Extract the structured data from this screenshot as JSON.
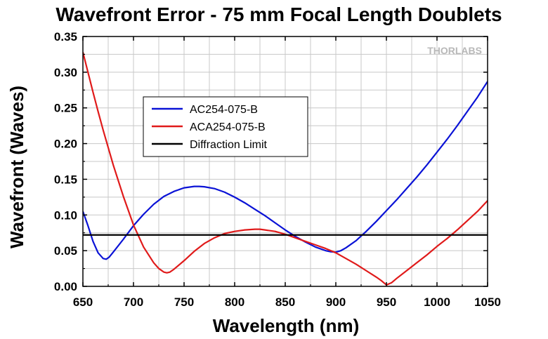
{
  "colors": {
    "blue": "#0a12d6",
    "red": "#e01a1a",
    "black": "#000000",
    "grid": "#c8c8c8"
  },
  "brand": "THORLABS",
  "chart_data": {
    "type": "line",
    "title": "Wavefront Error - 75 mm Focal Length Doublets",
    "xlabel": "Wavelength (nm)",
    "ylabel": "Wavefront (Waves)",
    "xlim": [
      650,
      1050
    ],
    "ylim": [
      0,
      0.35
    ],
    "xticks": [
      650,
      700,
      750,
      800,
      850,
      900,
      950,
      1000,
      1050
    ],
    "yticks": [
      0.0,
      0.05,
      0.1,
      0.15,
      0.2,
      0.25,
      0.3,
      0.35
    ],
    "ytick_labels": [
      "0.00",
      "0.05",
      "0.10",
      "0.15",
      "0.20",
      "0.25",
      "0.30",
      "0.35"
    ],
    "grid": true,
    "legend_position": "upper-left-center",
    "series": [
      {
        "name": "AC254-075-B",
        "color": "#0a12d6",
        "x": [
          650,
          655,
          660,
          665,
          670,
          673,
          676,
          680,
          690,
          700,
          710,
          720,
          730,
          740,
          750,
          760,
          765,
          770,
          780,
          790,
          800,
          810,
          820,
          830,
          840,
          850,
          860,
          870,
          880,
          890,
          895,
          900,
          905,
          910,
          920,
          930,
          940,
          950,
          960,
          970,
          980,
          990,
          1000,
          1010,
          1020,
          1030,
          1040,
          1050
        ],
        "y": [
          0.105,
          0.085,
          0.063,
          0.047,
          0.039,
          0.038,
          0.041,
          0.048,
          0.066,
          0.085,
          0.101,
          0.115,
          0.126,
          0.133,
          0.138,
          0.14,
          0.14,
          0.1395,
          0.137,
          0.132,
          0.125,
          0.117,
          0.108,
          0.099,
          0.089,
          0.079,
          0.07,
          0.062,
          0.055,
          0.05,
          0.0485,
          0.048,
          0.05,
          0.054,
          0.064,
          0.077,
          0.091,
          0.106,
          0.121,
          0.137,
          0.153,
          0.17,
          0.188,
          0.206,
          0.225,
          0.245,
          0.265,
          0.287
        ]
      },
      {
        "name": "ACA254-075-B",
        "color": "#e01a1a",
        "x": [
          650,
          655,
          660,
          665,
          670,
          680,
          690,
          700,
          710,
          720,
          725,
          730,
          733,
          736,
          740,
          750,
          760,
          770,
          780,
          790,
          800,
          810,
          820,
          825,
          830,
          840,
          850,
          860,
          870,
          880,
          890,
          900,
          910,
          920,
          930,
          940,
          945,
          950,
          955,
          960,
          970,
          980,
          990,
          1000,
          1010,
          1020,
          1030,
          1040,
          1050
        ],
        "y": [
          0.328,
          0.3,
          0.272,
          0.245,
          0.219,
          0.17,
          0.126,
          0.086,
          0.055,
          0.033,
          0.025,
          0.02,
          0.019,
          0.02,
          0.024,
          0.036,
          0.049,
          0.06,
          0.068,
          0.074,
          0.077,
          0.079,
          0.08,
          0.08,
          0.079,
          0.077,
          0.073,
          0.068,
          0.063,
          0.058,
          0.053,
          0.047,
          0.039,
          0.031,
          0.022,
          0.013,
          0.008,
          0.002,
          0.005,
          0.011,
          0.022,
          0.033,
          0.044,
          0.056,
          0.067,
          0.079,
          0.092,
          0.105,
          0.12
        ]
      },
      {
        "name": "Diffraction Limit",
        "color": "#000000",
        "x": [
          650,
          1050
        ],
        "y": [
          0.072,
          0.072
        ]
      }
    ]
  }
}
